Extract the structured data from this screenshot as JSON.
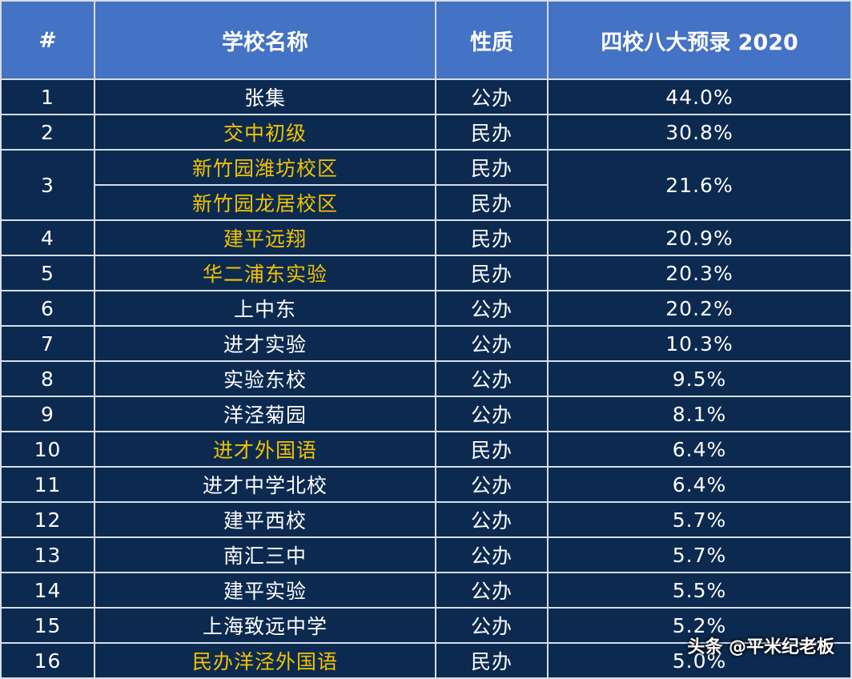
{
  "colors": {
    "header_bg": "#4472c4",
    "body_bg": "#0c2a50",
    "highlight_text": "#f2c200",
    "normal_text": "#ffffff",
    "border": "#d6dee8"
  },
  "chart_data": {
    "type": "table",
    "columns": [
      "#",
      "学校名称",
      "性质",
      "四校八大预录 2020"
    ],
    "rows": [
      {
        "rank": "1",
        "schools": [
          {
            "name": "张集",
            "type": "公办"
          }
        ],
        "rate": "44.0%",
        "highlight": false
      },
      {
        "rank": "2",
        "schools": [
          {
            "name": "交中初级",
            "type": "民办"
          }
        ],
        "rate": "30.8%",
        "highlight": true
      },
      {
        "rank": "3",
        "schools": [
          {
            "name": "新竹园潍坊校区",
            "type": "民办"
          },
          {
            "name": "新竹园龙居校区",
            "type": "民办"
          }
        ],
        "rate": "21.6%",
        "highlight": true
      },
      {
        "rank": "4",
        "schools": [
          {
            "name": "建平远翔",
            "type": "民办"
          }
        ],
        "rate": "20.9%",
        "highlight": true
      },
      {
        "rank": "5",
        "schools": [
          {
            "name": "华二浦东实验",
            "type": "民办"
          }
        ],
        "rate": "20.3%",
        "highlight": true
      },
      {
        "rank": "6",
        "schools": [
          {
            "name": "上中东",
            "type": "公办"
          }
        ],
        "rate": "20.2%",
        "highlight": false
      },
      {
        "rank": "7",
        "schools": [
          {
            "name": "进才实验",
            "type": "公办"
          }
        ],
        "rate": "10.3%",
        "highlight": false
      },
      {
        "rank": "8",
        "schools": [
          {
            "name": "实验东校",
            "type": "公办"
          }
        ],
        "rate": "9.5%",
        "highlight": false
      },
      {
        "rank": "9",
        "schools": [
          {
            "name": "洋泾菊园",
            "type": "公办"
          }
        ],
        "rate": "8.1%",
        "highlight": false
      },
      {
        "rank": "10",
        "schools": [
          {
            "name": "进才外国语",
            "type": "民办"
          }
        ],
        "rate": "6.4%",
        "highlight": true
      },
      {
        "rank": "11",
        "schools": [
          {
            "name": "进才中学北校",
            "type": "公办"
          }
        ],
        "rate": "6.4%",
        "highlight": false
      },
      {
        "rank": "12",
        "schools": [
          {
            "name": "建平西校",
            "type": "公办"
          }
        ],
        "rate": "5.7%",
        "highlight": false
      },
      {
        "rank": "13",
        "schools": [
          {
            "name": "南汇三中",
            "type": "公办"
          }
        ],
        "rate": "5.7%",
        "highlight": false
      },
      {
        "rank": "14",
        "schools": [
          {
            "name": "建平实验",
            "type": "公办"
          }
        ],
        "rate": "5.5%",
        "highlight": false
      },
      {
        "rank": "15",
        "schools": [
          {
            "name": "上海致远中学",
            "type": "公办"
          }
        ],
        "rate": "5.2%",
        "highlight": false
      },
      {
        "rank": "16",
        "schools": [
          {
            "name": "民办洋泾外国语",
            "type": "民办"
          }
        ],
        "rate": "5.0%",
        "highlight": true
      }
    ]
  },
  "watermark": "头条 @平米纪老板"
}
